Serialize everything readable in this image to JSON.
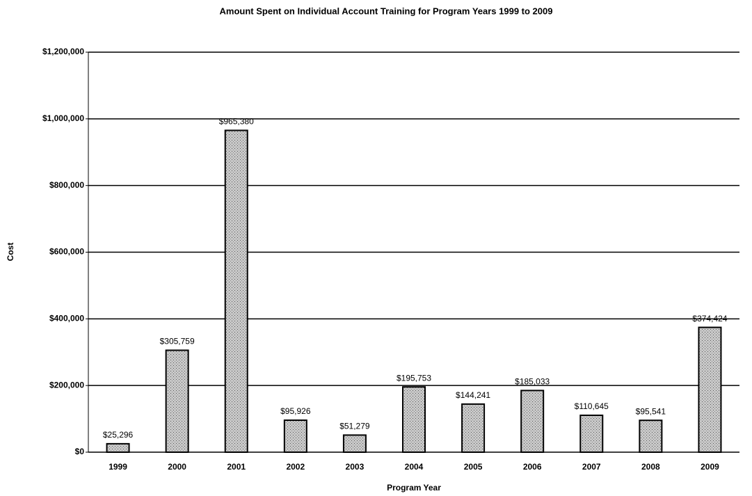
{
  "chart_data": {
    "type": "bar",
    "title": "Amount Spent on Individual Account Training for Program Years 1999 to 2009",
    "x_label": "Program Year",
    "y_label": "Cost",
    "categories": [
      "1999",
      "2000",
      "2001",
      "2002",
      "2003",
      "2004",
      "2005",
      "2006",
      "2007",
      "2008",
      "2009"
    ],
    "values": [
      25296,
      305759,
      965380,
      95926,
      51279,
      195753,
      144241,
      185033,
      110645,
      95541,
      374424
    ],
    "value_labels": [
      "$25,296",
      "$305,759",
      "$965,380",
      "$95,926",
      "$51,279",
      "$195,753",
      "$144,241",
      "$185,033",
      "$110,645",
      "$95,541",
      "$374,424"
    ],
    "color": "#c8c8c8",
    "ylim": [
      0,
      1200000
    ],
    "yticks": [
      {
        "value": 0,
        "label": "$0"
      },
      {
        "value": 200000,
        "label": "$200,000"
      },
      {
        "value": 400000,
        "label": "$400,000"
      },
      {
        "value": 600000,
        "label": "$600,000"
      },
      {
        "value": 800000,
        "label": "$800,000"
      },
      {
        "value": 1000000,
        "label": "$1,000,000"
      },
      {
        "value": 1200000,
        "label": "$1,200,000"
      }
    ],
    "grid": true
  }
}
